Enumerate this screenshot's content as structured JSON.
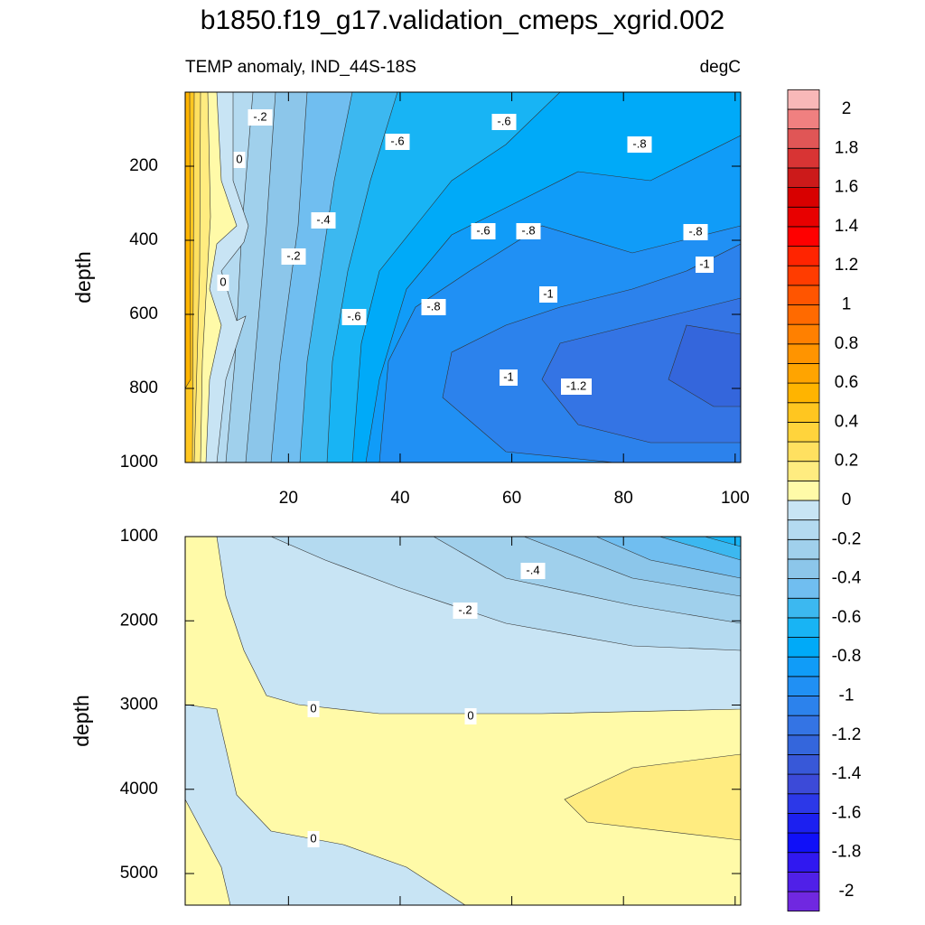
{
  "title": "b1850.f19_g17.validation_cmeps_xgrid.002",
  "chart_data": [
    {
      "type": "contour",
      "subtitle_left": "TEMP anomaly, IND_44S-18S",
      "subtitle_right": "degC",
      "ylabel": "depth",
      "xlim": [
        1.5,
        101
      ],
      "xticks": [
        20,
        40,
        60,
        80,
        100
      ],
      "ylim": [
        0,
        1000
      ],
      "yticks": [
        200,
        400,
        600,
        800,
        1000
      ],
      "y_reversed": true,
      "contour_labels": [
        "-.2",
        "0",
        "-.4",
        "-.2",
        "0",
        "-.6",
        "-.6",
        "-.6",
        "-.8",
        "-.6",
        "-.8",
        "-.8",
        "-1",
        "-.8",
        "-1",
        "-1",
        "-1.2"
      ]
    },
    {
      "type": "contour",
      "ylabel": "depth",
      "xlim": [
        1.5,
        101
      ],
      "ylim": [
        1000,
        5375
      ],
      "yticks": [
        1000,
        2000,
        3000,
        4000,
        5000
      ],
      "y_reversed": true,
      "contour_labels": [
        "-.4",
        "-.2",
        "0",
        "0",
        "0"
      ]
    }
  ],
  "colorbar": {
    "levels": [
      -2,
      -1.9,
      -1.8,
      -1.7,
      -1.6,
      -1.5,
      -1.4,
      -1.3,
      -1.2,
      -1.1,
      -1,
      -0.9,
      -0.8,
      -0.7,
      -0.6,
      -0.5,
      -0.4,
      -0.3,
      -0.2,
      -0.1,
      0,
      0.1,
      0.2,
      0.3,
      0.4,
      0.5,
      0.6,
      0.7,
      0.8,
      0.9,
      1,
      1.1,
      1.2,
      1.3,
      1.4,
      1.5,
      1.6,
      1.7,
      1.8,
      1.9,
      2
    ],
    "colors": [
      "#7028e0",
      "#5020e8",
      "#3018f0",
      "#1010f8",
      "#1c20f0",
      "#2c38e8",
      "#3c4ad8",
      "#3858d8",
      "#3466dc",
      "#3474e4",
      "#2c82ec",
      "#2090f4",
      "#109cf8",
      "#00aaf8",
      "#18b4f4",
      "#3cb8f0",
      "#70bef0",
      "#8cc6ea",
      "#a0d0ec",
      "#b4daf0",
      "#c8e4f4",
      "#fffaa8",
      "#ffec80",
      "#ffe060",
      "#ffd43c",
      "#ffc620",
      "#ffb400",
      "#ffa400",
      "#ff9400",
      "#ff8000",
      "#ff6a00",
      "#ff5500",
      "#ff3c00",
      "#ff2400",
      "#ff0000",
      "#e80000",
      "#d80000",
      "#cc1a1a",
      "#d83434",
      "#e05656",
      "#f08080",
      "#f8b8b8"
    ],
    "ticks": [
      -2,
      -1.8,
      -1.6,
      -1.4,
      -1.2,
      -1,
      -0.8,
      -0.6,
      -0.4,
      -0.2,
      0,
      0.2,
      0.4,
      0.6,
      0.8,
      1,
      1.2,
      1.4,
      1.6,
      1.8,
      2
    ]
  }
}
